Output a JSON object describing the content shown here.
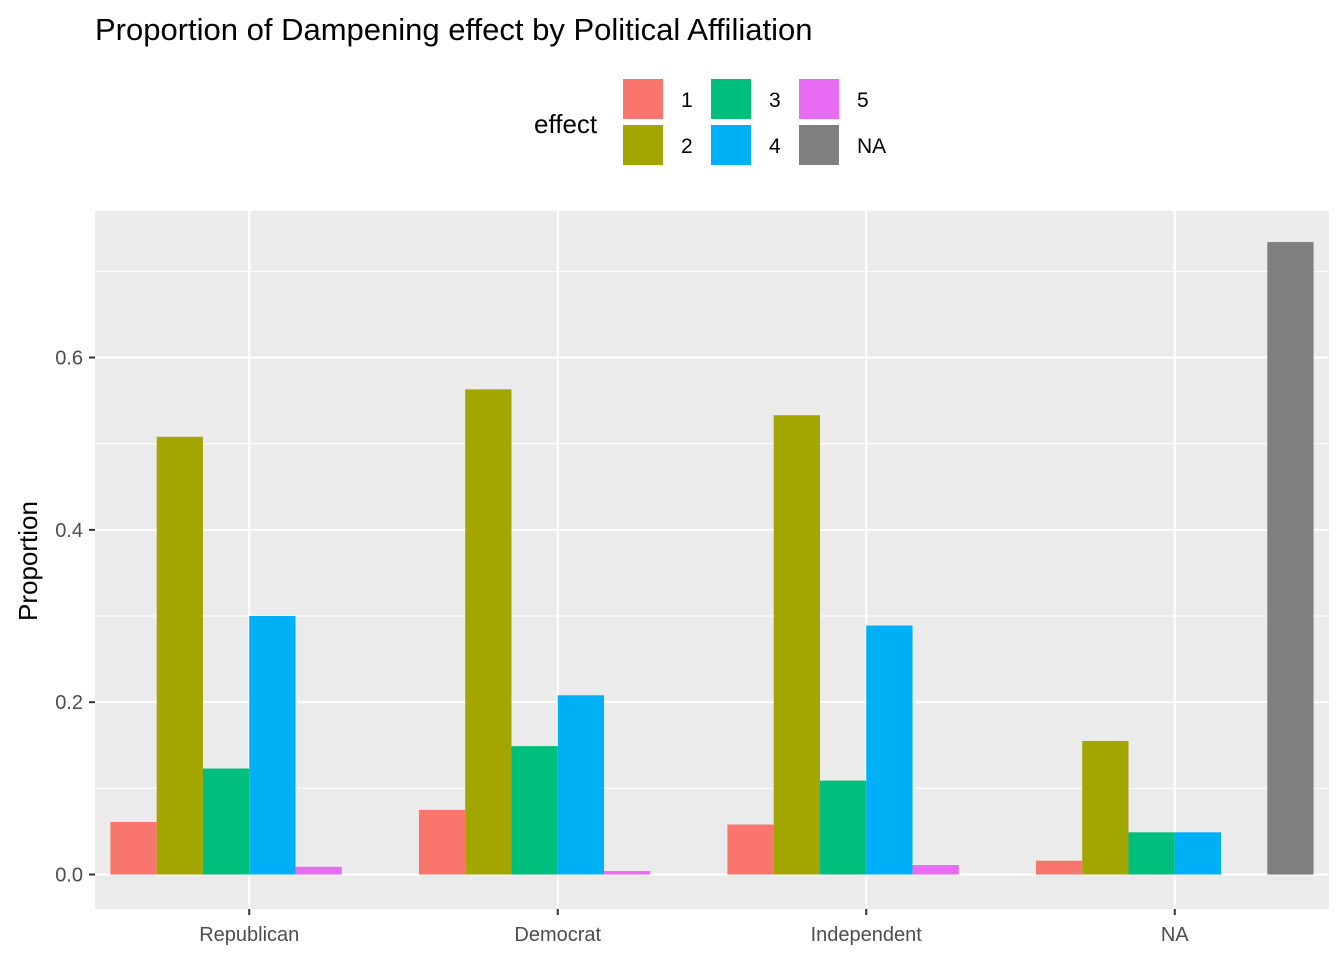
{
  "chart_data": {
    "type": "bar",
    "title": "Proportion of Dampening effect by Political Affiliation",
    "xlabel": "",
    "ylabel": "Proportion",
    "categories": [
      "Republican",
      "Democrat",
      "Independent",
      "NA"
    ],
    "legend": {
      "title": "effect",
      "placement": "top"
    },
    "y_ticks": [
      0.0,
      0.2,
      0.4,
      0.6
    ],
    "y_tick_labels": [
      "0.0",
      "0.2",
      "0.4",
      "0.6"
    ],
    "ylim": [
      -0.04,
      0.77
    ],
    "grid": true,
    "series": [
      {
        "name": "1",
        "color": "#F8766D",
        "values": [
          0.061,
          0.075,
          0.058,
          0.016
        ]
      },
      {
        "name": "2",
        "color": "#A3A500",
        "values": [
          0.508,
          0.563,
          0.533,
          0.155
        ]
      },
      {
        "name": "3",
        "color": "#00BF7D",
        "values": [
          0.123,
          0.149,
          0.109,
          0.049
        ]
      },
      {
        "name": "4",
        "color": "#00B0F6",
        "values": [
          0.3,
          0.208,
          0.289,
          0.049
        ]
      },
      {
        "name": "5",
        "color": "#E76BF3",
        "values": [
          0.009,
          0.004,
          0.011,
          null
        ]
      },
      {
        "name": "NA",
        "color": "#7F7F7F",
        "values": [
          null,
          null,
          null,
          0.734
        ]
      }
    ]
  }
}
